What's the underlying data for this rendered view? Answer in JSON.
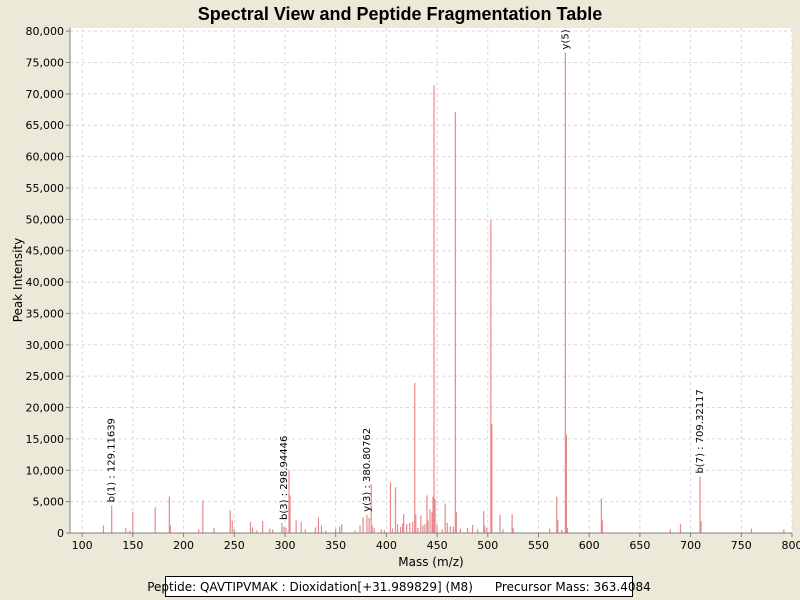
{
  "chart_data": {
    "type": "bar",
    "title": "Spectral View and Peptide Fragmentation Table",
    "xlabel": "Mass (m/z)",
    "ylabel": "Peak Intensity",
    "xlim": [
      88,
      800
    ],
    "ylim": [
      0,
      80500
    ],
    "xticks": [
      100,
      150,
      200,
      250,
      300,
      350,
      400,
      450,
      500,
      550,
      600,
      650,
      700,
      750,
      800
    ],
    "xtick_labels": [
      "100",
      "150",
      "200",
      "250",
      "300",
      "350",
      "400",
      "450",
      "500",
      "550",
      "600",
      "650",
      "700",
      "750",
      "800"
    ],
    "yticks": [
      0,
      5000,
      10000,
      15000,
      20000,
      25000,
      30000,
      35000,
      40000,
      45000,
      50000,
      55000,
      60000,
      65000,
      70000,
      75000,
      80000
    ],
    "ytick_labels": [
      "0",
      "5,000",
      "10,000",
      "15,000",
      "20,000",
      "25,000",
      "30,000",
      "35,000",
      "40,000",
      "45,000",
      "50,000",
      "55,000",
      "60,000",
      "65,000",
      "70,000",
      "75,000",
      "80,000"
    ],
    "grid": true,
    "peak_color": "#E8888A",
    "peaks": [
      {
        "mz": 121,
        "i": 1200
      },
      {
        "mz": 129.1,
        "i": 4400
      },
      {
        "mz": 143,
        "i": 800
      },
      {
        "mz": 147,
        "i": 400
      },
      {
        "mz": 150,
        "i": 3400
      },
      {
        "mz": 172,
        "i": 4100
      },
      {
        "mz": 186,
        "i": 5800
      },
      {
        "mz": 187,
        "i": 1200
      },
      {
        "mz": 215,
        "i": 600
      },
      {
        "mz": 219,
        "i": 5200
      },
      {
        "mz": 230,
        "i": 800
      },
      {
        "mz": 246,
        "i": 3600
      },
      {
        "mz": 248,
        "i": 2000
      },
      {
        "mz": 250,
        "i": 600
      },
      {
        "mz": 266,
        "i": 1800
      },
      {
        "mz": 268,
        "i": 900
      },
      {
        "mz": 272,
        "i": 400
      },
      {
        "mz": 278,
        "i": 1900
      },
      {
        "mz": 285,
        "i": 700
      },
      {
        "mz": 288,
        "i": 600
      },
      {
        "mz": 297,
        "i": 1600
      },
      {
        "mz": 299,
        "i": 1000
      },
      {
        "mz": 301,
        "i": 800
      },
      {
        "mz": 304,
        "i": 10000
      },
      {
        "mz": 305,
        "i": 6000
      },
      {
        "mz": 311,
        "i": 2100
      },
      {
        "mz": 316,
        "i": 1800
      },
      {
        "mz": 320,
        "i": 600
      },
      {
        "mz": 330,
        "i": 900
      },
      {
        "mz": 333,
        "i": 2500
      },
      {
        "mz": 336,
        "i": 1200
      },
      {
        "mz": 340,
        "i": 400
      },
      {
        "mz": 350,
        "i": 700
      },
      {
        "mz": 354,
        "i": 1000
      },
      {
        "mz": 356,
        "i": 1400
      },
      {
        "mz": 369,
        "i": 400
      },
      {
        "mz": 374,
        "i": 1200
      },
      {
        "mz": 377,
        "i": 2500
      },
      {
        "mz": 380.8,
        "i": 2900
      },
      {
        "mz": 383,
        "i": 2400
      },
      {
        "mz": 385,
        "i": 7800
      },
      {
        "mz": 386,
        "i": 1200
      },
      {
        "mz": 388,
        "i": 800
      },
      {
        "mz": 395,
        "i": 600
      },
      {
        "mz": 398,
        "i": 500
      },
      {
        "mz": 404,
        "i": 8100
      },
      {
        "mz": 406,
        "i": 700
      },
      {
        "mz": 409,
        "i": 7300
      },
      {
        "mz": 411,
        "i": 1400
      },
      {
        "mz": 414,
        "i": 1000
      },
      {
        "mz": 416,
        "i": 1500
      },
      {
        "mz": 417,
        "i": 3000
      },
      {
        "mz": 420,
        "i": 1400
      },
      {
        "mz": 423,
        "i": 1600
      },
      {
        "mz": 426,
        "i": 1800
      },
      {
        "mz": 428,
        "i": 23900
      },
      {
        "mz": 429,
        "i": 3000
      },
      {
        "mz": 431,
        "i": 800
      },
      {
        "mz": 434,
        "i": 2800
      },
      {
        "mz": 436,
        "i": 1200
      },
      {
        "mz": 438,
        "i": 1400
      },
      {
        "mz": 440,
        "i": 6000
      },
      {
        "mz": 441,
        "i": 2000
      },
      {
        "mz": 443,
        "i": 3800
      },
      {
        "mz": 445,
        "i": 3300
      },
      {
        "mz": 446,
        "i": 5800
      },
      {
        "mz": 447,
        "i": 71400
      },
      {
        "mz": 448,
        "i": 5400
      },
      {
        "mz": 450,
        "i": 1400
      },
      {
        "mz": 455,
        "i": 600
      },
      {
        "mz": 458,
        "i": 4700
      },
      {
        "mz": 460,
        "i": 1600
      },
      {
        "mz": 463,
        "i": 1100
      },
      {
        "mz": 466,
        "i": 1000
      },
      {
        "mz": 468,
        "i": 67100
      },
      {
        "mz": 469,
        "i": 3300
      },
      {
        "mz": 473,
        "i": 700
      },
      {
        "mz": 480,
        "i": 800
      },
      {
        "mz": 485,
        "i": 1300
      },
      {
        "mz": 490,
        "i": 600
      },
      {
        "mz": 496,
        "i": 3500
      },
      {
        "mz": 497,
        "i": 1200
      },
      {
        "mz": 499,
        "i": 800
      },
      {
        "mz": 503,
        "i": 49900
      },
      {
        "mz": 504,
        "i": 17400
      },
      {
        "mz": 512,
        "i": 2900
      },
      {
        "mz": 515,
        "i": 600
      },
      {
        "mz": 524,
        "i": 3000
      },
      {
        "mz": 525,
        "i": 800
      },
      {
        "mz": 561,
        "i": 700
      },
      {
        "mz": 568,
        "i": 5800
      },
      {
        "mz": 569,
        "i": 2100
      },
      {
        "mz": 573,
        "i": 500
      },
      {
        "mz": 576.5,
        "i": 76600
      },
      {
        "mz": 577.5,
        "i": 15700
      },
      {
        "mz": 578.5,
        "i": 800
      },
      {
        "mz": 612,
        "i": 5500
      },
      {
        "mz": 613,
        "i": 2000
      },
      {
        "mz": 680,
        "i": 600
      },
      {
        "mz": 690,
        "i": 1400
      },
      {
        "mz": 709.3,
        "i": 9000
      },
      {
        "mz": 710.3,
        "i": 1900
      },
      {
        "mz": 760,
        "i": 700
      },
      {
        "mz": 792,
        "i": 600
      }
    ],
    "annotations": [
      {
        "mz": 129.1,
        "i": 4400,
        "label": "b(1) : 129.11639"
      },
      {
        "mz": 298.9,
        "i": 1600,
        "label": "b(3) : 298.94446"
      },
      {
        "mz": 380.8,
        "i": 2900,
        "label": "y(3) : 380.80762"
      },
      {
        "mz": 576.5,
        "i": 76600,
        "label": "y(5)"
      },
      {
        "mz": 709.3,
        "i": 9000,
        "label": "b(7) : 709.32117"
      }
    ]
  },
  "info": {
    "peptide": "Peptide: QAVTIPVMAK : Dioxidation[+31.989829] (M8)",
    "precursor": "Precursor Mass: 363.4084"
  }
}
